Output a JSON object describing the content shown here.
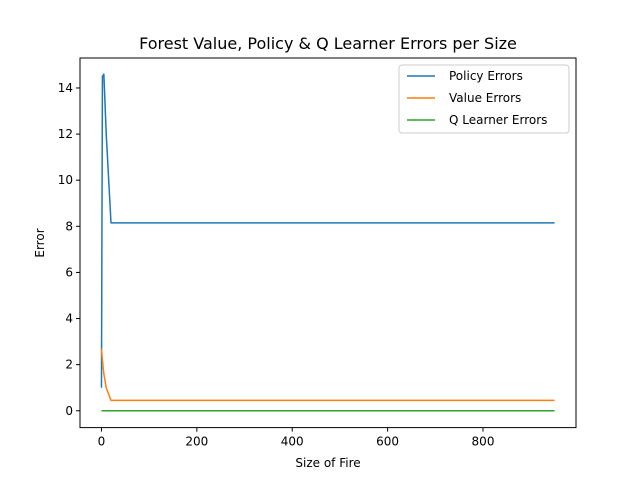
{
  "chart_data": {
    "type": "line",
    "title": "Forest Value, Policy & Q Learner Errors per Size",
    "xlabel": "Size of Fire",
    "ylabel": "Error",
    "xlim": [
      -45,
      995
    ],
    "ylim": [
      -0.73,
      15.3
    ],
    "xticks": [
      0,
      200,
      400,
      600,
      800
    ],
    "yticks": [
      0,
      2,
      4,
      6,
      8,
      10,
      12,
      14
    ],
    "grid": false,
    "legend_position": "upper right",
    "series": [
      {
        "name": "Policy Errors",
        "color": "#1f77b4",
        "x": [
          0,
          2,
          5,
          10,
          20,
          50,
          100,
          200,
          400,
          600,
          800,
          950
        ],
        "y": [
          1.0,
          14.5,
          14.6,
          12.0,
          8.15,
          8.15,
          8.15,
          8.15,
          8.15,
          8.15,
          8.15,
          8.15
        ]
      },
      {
        "name": "Value Errors",
        "color": "#ff7f0e",
        "x": [
          0,
          2,
          5,
          10,
          20,
          50,
          100,
          200,
          400,
          600,
          800,
          950
        ],
        "y": [
          2.7,
          2.2,
          1.6,
          1.0,
          0.45,
          0.45,
          0.45,
          0.45,
          0.45,
          0.45,
          0.45,
          0.45
        ]
      },
      {
        "name": "Q Learner Errors",
        "color": "#2ca02c",
        "x": [
          0,
          2,
          5,
          10,
          20,
          50,
          100,
          200,
          400,
          600,
          800,
          950
        ],
        "y": [
          0.0,
          0.0,
          0.0,
          0.0,
          0.0,
          0.0,
          0.0,
          0.0,
          0.0,
          0.0,
          0.0,
          0.0
        ]
      }
    ]
  }
}
